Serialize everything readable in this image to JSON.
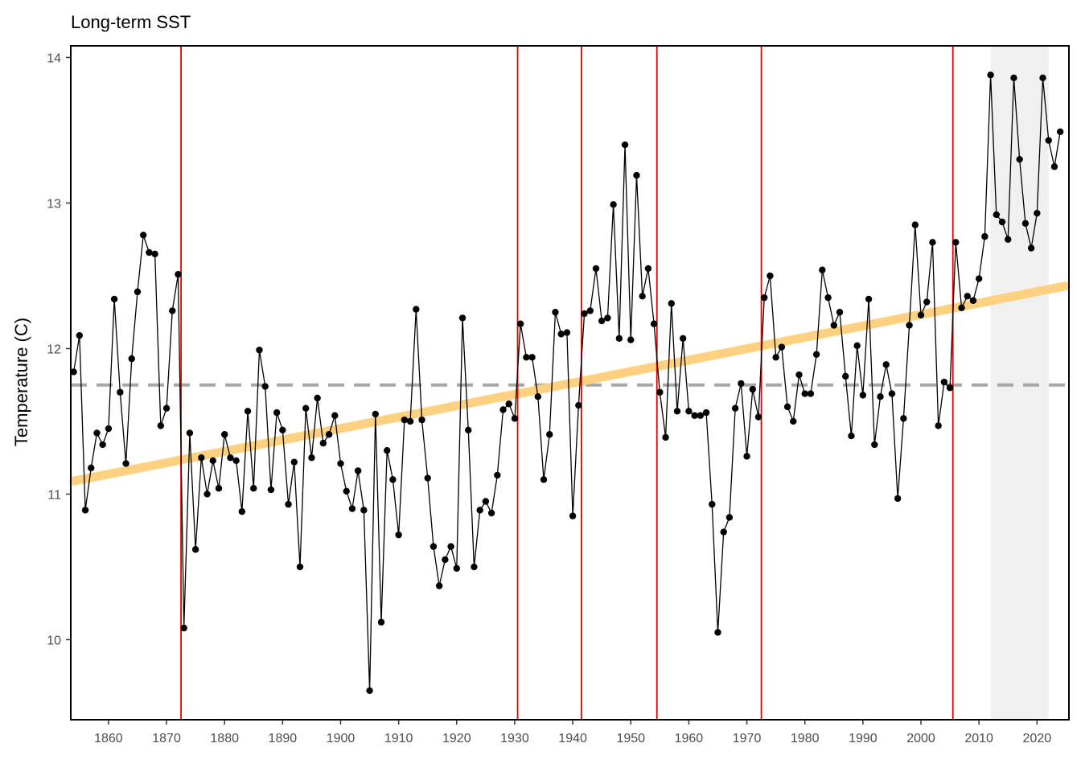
{
  "chart_data": {
    "type": "line",
    "title": "Long-term SST",
    "xlabel": "",
    "ylabel": "Temperature (C)",
    "xlim": [
      1853.5,
      2025.5
    ],
    "ylim": [
      9.45,
      14.08
    ],
    "x_ticks": [
      1860,
      1870,
      1880,
      1890,
      1900,
      1910,
      1920,
      1930,
      1940,
      1950,
      1960,
      1970,
      1980,
      1990,
      2000,
      2010,
      2020
    ],
    "y_ticks": [
      10,
      11,
      12,
      13,
      14
    ],
    "grid": false,
    "legend": "none",
    "series": [
      {
        "x": [
          1854,
          1855,
          1856,
          1857,
          1858,
          1859,
          1860,
          1861,
          1862,
          1863,
          1864,
          1865,
          1866,
          1867,
          1868,
          1869,
          1870,
          1871,
          1872,
          1873,
          1874,
          1875,
          1876,
          1877,
          1878,
          1879,
          1880,
          1881,
          1882,
          1883,
          1884,
          1885,
          1886,
          1887,
          1888,
          1889,
          1890,
          1891,
          1892,
          1893,
          1894,
          1895,
          1896,
          1897,
          1898,
          1899,
          1900,
          1901,
          1902,
          1903,
          1904,
          1905,
          1906,
          1907,
          1908,
          1909,
          1910,
          1911,
          1912,
          1913,
          1914,
          1915,
          1916,
          1917,
          1918,
          1919,
          1920,
          1921,
          1922,
          1923,
          1924,
          1925,
          1926,
          1927,
          1928,
          1929,
          1930,
          1931,
          1932,
          1933,
          1934,
          1935,
          1936,
          1937,
          1938,
          1939,
          1940,
          1941,
          1942,
          1943,
          1944,
          1945,
          1946,
          1947,
          1948,
          1949,
          1950,
          1951,
          1952,
          1953,
          1954,
          1955,
          1956,
          1957,
          1958,
          1959,
          1960,
          1961,
          1962,
          1963,
          1964,
          1965,
          1966,
          1967,
          1968,
          1969,
          1970,
          1971,
          1972,
          1973,
          1974,
          1975,
          1976,
          1977,
          1978,
          1979,
          1980,
          1981,
          1982,
          1983,
          1984,
          1985,
          1986,
          1987,
          1988,
          1989,
          1990,
          1991,
          1992,
          1993,
          1994,
          1995,
          1996,
          1997,
          1998,
          1999,
          2000,
          2001,
          2002,
          2003,
          2004,
          2005,
          2006,
          2007,
          2008,
          2009,
          2010,
          2011,
          2012,
          2013,
          2014,
          2015,
          2016,
          2017,
          2018,
          2019,
          2020,
          2021,
          2022,
          2023,
          2024
        ],
        "y": [
          11.84,
          12.09,
          10.89,
          11.18,
          11.42,
          11.34,
          11.45,
          12.34,
          11.7,
          11.21,
          11.93,
          12.39,
          12.78,
          12.66,
          12.65,
          11.47,
          11.59,
          12.26,
          12.51,
          10.08,
          11.42,
          10.62,
          11.25,
          11.0,
          11.23,
          11.04,
          11.41,
          11.25,
          11.23,
          10.88,
          11.57,
          11.04,
          11.99,
          11.74,
          11.03,
          11.56,
          11.44,
          10.93,
          11.22,
          10.5,
          11.59,
          11.25,
          11.66,
          11.35,
          11.41,
          11.54,
          11.21,
          11.02,
          10.9,
          11.16,
          10.89,
          9.65,
          11.55,
          10.12,
          11.3,
          11.1,
          10.72,
          11.51,
          11.5,
          12.27,
          11.51,
          11.11,
          10.64,
          10.37,
          10.55,
          10.64,
          10.49,
          12.21,
          11.44,
          10.5,
          10.89,
          10.95,
          10.87,
          11.13,
          11.58,
          11.62,
          11.52,
          12.17,
          11.94,
          11.94,
          11.67,
          11.1,
          11.41,
          12.25,
          12.1,
          12.11,
          10.85,
          11.61,
          12.24,
          12.26,
          12.55,
          12.19,
          12.21,
          12.99,
          12.07,
          13.4,
          12.06,
          13.19,
          12.36,
          12.55,
          12.17,
          11.7,
          11.39,
          12.31,
          11.57,
          12.07,
          11.57,
          11.54,
          11.54,
          11.56,
          10.93,
          10.05,
          10.74,
          10.84,
          11.59,
          11.76,
          11.26,
          11.72,
          11.53,
          12.35,
          12.5,
          11.94,
          12.01,
          11.6,
          11.5,
          11.82,
          11.69,
          11.69,
          11.96,
          12.54,
          12.35,
          12.16,
          12.25,
          11.81,
          11.4,
          12.02,
          11.68,
          12.34,
          11.34,
          11.67,
          11.89,
          11.69,
          10.97,
          11.52,
          12.16,
          12.85,
          12.23,
          12.32,
          12.73,
          11.47,
          11.77,
          11.73,
          12.73,
          12.28,
          12.36,
          12.33,
          12.48,
          12.77,
          13.88,
          12.92,
          12.87,
          12.75,
          13.86,
          13.3,
          12.86,
          12.69,
          12.93,
          13.86,
          13.43,
          13.25,
          13.49
        ]
      }
    ],
    "reference_line": {
      "y": 11.75,
      "style": "dashed",
      "color": "#a6a6a6"
    },
    "trend_line": {
      "x": [
        1854,
        2025
      ],
      "y": [
        11.09,
        12.43
      ],
      "color": "#fdd17f"
    },
    "breakpoints": [
      1872.5,
      1930.5,
      1941.5,
      1954.5,
      1972.5,
      2005.5
    ],
    "breakpoint_color": "#e00000",
    "shaded_region": {
      "x": [
        2012,
        2022
      ],
      "color": "#f0f0f0"
    }
  }
}
